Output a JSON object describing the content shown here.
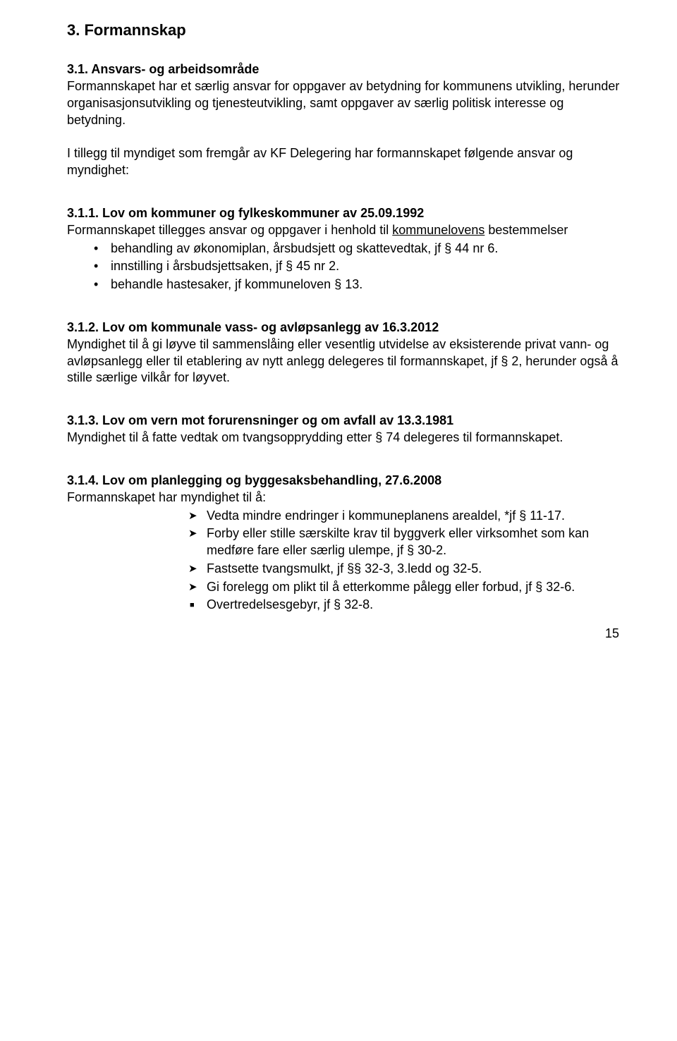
{
  "document": {
    "text_color": "#000000",
    "background_color": "#ffffff",
    "font_family": "Verdana",
    "base_fontsize_pt": 13
  },
  "title": "3. Formannskap",
  "s31": {
    "heading": "3.1. Ansvars- og arbeidsområde",
    "p1": "Formannskapet har et særlig ansvar for oppgaver av betydning for kommunens utvikling, herunder organisasjonsutvikling og tjenesteutvikling, samt oppgaver av særlig politisk interesse og betydning.",
    "p2": "I tillegg til myndiget som fremgår av KF Delegering har formannskapet følgende ansvar og myndighet:"
  },
  "s311": {
    "heading": "3.1.1. Lov om kommuner og fylkeskommuner av 25.09.1992",
    "lead_pre": "Formannskapet tillegges ansvar og oppgaver i henhold til ",
    "lead_underlined": "kommunelovens",
    "lead_post": " bestemmelser",
    "bullets": [
      "behandling av økonomiplan, årsbudsjett og skattevedtak, jf § 44 nr 6.",
      "innstilling i årsbudsjettsaken, jf § 45 nr 2.",
      "behandle hastesaker, jf kommuneloven § 13."
    ]
  },
  "s312": {
    "heading": "3.1.2. Lov om kommunale vass- og avløpsanlegg av 16.3.2012",
    "p": "Myndighet til å gi løyve til sammenslåing eller vesentlig utvidelse av eksisterende privat vann- og avløpsanlegg eller til etablering av nytt anlegg delegeres til formannskapet, jf § 2, herunder også å stille særlige vilkår for løyvet."
  },
  "s313": {
    "heading": "3.1.3. Lov om vern mot forurensninger og om avfall av 13.3.1981",
    "p": "Myndighet til å fatte vedtak om tvangsopprydding etter § 74 delegeres til formannskapet."
  },
  "s314": {
    "heading": "3.1.4. Lov om planlegging og byggesaksbehandling, 27.6.2008",
    "lead": "Formannskapet har myndighet til å:",
    "arrows": [
      "Vedta mindre endringer i kommuneplanens arealdel, *jf § 11-17.",
      "Forby eller stille særskilte krav til byggverk eller virksomhet som kan medføre fare eller særlig ulempe, jf § 30-2.",
      "Fastsette tvangsmulkt, jf §§ 32-3, 3.ledd og 32-5.",
      "Gi forelegg om plikt til å etterkomme pålegg eller forbud, jf § 32-6."
    ],
    "square": [
      "Overtredelsesgebyr, jf § 32-8."
    ]
  },
  "page_number": "15"
}
